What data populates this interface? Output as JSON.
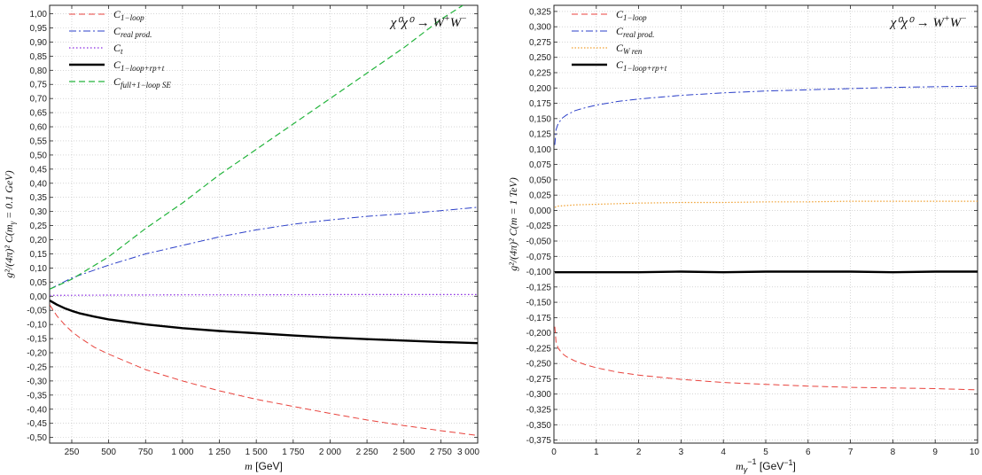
{
  "chart_data": [
    {
      "type": "line",
      "xlabel": {
        "var": "m",
        "unit": "[GeV]"
      },
      "ylabel": {
        "text": "g²/(4π)² C(m",
        "sub": "γ",
        "rest": " = 0.1 GeV)"
      },
      "xlim": [
        100,
        3000
      ],
      "ylim": [
        -0.52,
        1.03
      ],
      "grid": true,
      "legend_placement": "top-left",
      "annotation": {
        "main": "χ⁰χ⁰ → W",
        "sup1": "+",
        "mid": "W",
        "sup2": "−"
      },
      "x_ticks": [
        250,
        500,
        750,
        1000,
        1250,
        1500,
        1750,
        2000,
        2250,
        2500,
        2750,
        3000
      ],
      "x_tick_labels": [
        "250",
        "500",
        "750",
        "1 000",
        "1 250",
        "1 500",
        "1 750",
        "2 000",
        "2 250",
        "2 500",
        "2 750",
        "3 000"
      ],
      "y_ticks": [
        -0.5,
        -0.45,
        -0.4,
        -0.35,
        -0.3,
        -0.25,
        -0.2,
        -0.15,
        -0.1,
        -0.05,
        0.0,
        0.05,
        0.1,
        0.15,
        0.2,
        0.25,
        0.3,
        0.35,
        0.4,
        0.45,
        0.5,
        0.55,
        0.6,
        0.65,
        0.7,
        0.75,
        0.8,
        0.85,
        0.9,
        0.95,
        1.0
      ],
      "y_tick_labels": [
        "-0,50",
        "-0,45",
        "-0,40",
        "-0,35",
        "-0,30",
        "-0,25",
        "-0,20",
        "-0,15",
        "-0,10",
        "-0,05",
        "0,00",
        "0,05",
        "0,10",
        "0,15",
        "0,20",
        "0,25",
        "0,30",
        "0,35",
        "0,40",
        "0,45",
        "0,50",
        "0,55",
        "0,60",
        "0,65",
        "0,70",
        "0,75",
        "0,80",
        "0,85",
        "0,90",
        "0,95",
        "1,00"
      ],
      "series": [
        {
          "name": "C",
          "sub": "1−loop",
          "color": "#e8423c",
          "dash": "7,4",
          "width": 1,
          "x": [
            100,
            150,
            200,
            250,
            300,
            400,
            500,
            750,
            1000,
            1250,
            1500,
            1750,
            2000,
            2250,
            2500,
            2750,
            3000
          ],
          "y": [
            -0.03,
            -0.07,
            -0.1,
            -0.125,
            -0.145,
            -0.18,
            -0.205,
            -0.26,
            -0.3,
            -0.335,
            -0.365,
            -0.39,
            -0.415,
            -0.438,
            -0.458,
            -0.476,
            -0.493
          ]
        },
        {
          "name": "C",
          "sub": "real prod.",
          "color": "#2b3fc8",
          "dash": "8,3,2,3",
          "width": 1,
          "x": [
            100,
            250,
            500,
            750,
            1000,
            1250,
            1500,
            1750,
            2000,
            2250,
            2500,
            2750,
            3000
          ],
          "y": [
            0.025,
            0.065,
            0.11,
            0.15,
            0.18,
            0.21,
            0.235,
            0.255,
            0.27,
            0.283,
            0.292,
            0.303,
            0.315
          ]
        },
        {
          "name": "C",
          "sub": "t",
          "color": "#8a2be2",
          "dash": "1.5,2.5",
          "width": 1.2,
          "x": [
            100,
            500,
            1000,
            1500,
            2000,
            2500,
            3000
          ],
          "y": [
            0.003,
            0.004,
            0.005,
            0.005,
            0.006,
            0.006,
            0.006
          ]
        },
        {
          "name": "C",
          "sub": "1−loop+rp+t",
          "color": "#000000",
          "dash": "",
          "width": 2.4,
          "x": [
            100,
            150,
            200,
            250,
            300,
            400,
            500,
            750,
            1000,
            1250,
            1500,
            1750,
            2000,
            2250,
            2500,
            2750,
            3000
          ],
          "y": [
            -0.015,
            -0.03,
            -0.042,
            -0.052,
            -0.06,
            -0.072,
            -0.082,
            -0.1,
            -0.113,
            -0.123,
            -0.131,
            -0.139,
            -0.146,
            -0.152,
            -0.157,
            -0.162,
            -0.166
          ]
        },
        {
          "name": "C",
          "sub": "full+1−loop SE",
          "color": "#23b43c",
          "dash": "7,4",
          "width": 1.2,
          "x": [
            100,
            250,
            500,
            750,
            1000,
            1250,
            1500,
            1750,
            2000,
            2250,
            2500,
            2750,
            2900
          ],
          "y": [
            0.025,
            0.06,
            0.14,
            0.24,
            0.33,
            0.43,
            0.52,
            0.61,
            0.7,
            0.79,
            0.88,
            0.98,
            1.03
          ]
        }
      ]
    },
    {
      "type": "line",
      "xlabel": {
        "var": "m",
        "sub": "γ",
        "sup": "−1",
        "unit": " [GeV",
        "unit_sup": "−1",
        "unit_end": "]"
      },
      "ylabel": {
        "text": "g²/(4π)² C(m = 1 TeV)"
      },
      "xlim": [
        0,
        10
      ],
      "ylim": [
        -0.38,
        0.335
      ],
      "grid": true,
      "legend_placement": "top-left",
      "annotation": {
        "main": "χ⁰χ⁰ → W",
        "sup1": "+",
        "mid": "W",
        "sup2": "−"
      },
      "x_ticks": [
        0,
        1,
        2,
        3,
        4,
        5,
        6,
        7,
        8,
        9,
        10
      ],
      "x_tick_labels": [
        "0",
        "1",
        "2",
        "3",
        "4",
        "5",
        "6",
        "7",
        "8",
        "9",
        "10"
      ],
      "y_ticks": [
        -0.375,
        -0.35,
        -0.325,
        -0.3,
        -0.275,
        -0.25,
        -0.225,
        -0.2,
        -0.175,
        -0.15,
        -0.125,
        -0.1,
        -0.075,
        -0.05,
        -0.025,
        0.0,
        0.025,
        0.05,
        0.075,
        0.1,
        0.125,
        0.15,
        0.175,
        0.2,
        0.225,
        0.25,
        0.275,
        0.3,
        0.325
      ],
      "y_tick_labels": [
        "-0,375",
        "-0,350",
        "-0,325",
        "-0,300",
        "-0,275",
        "-0,250",
        "-0,225",
        "-0,200",
        "-0,175",
        "-0,150",
        "-0,125",
        "-0,100",
        "-0,075",
        "-0,050",
        "-0,025",
        "0,000",
        "0,025",
        "0,050",
        "0,075",
        "0,100",
        "0,125",
        "0,150",
        "0,175",
        "0,200",
        "0,225",
        "0,250",
        "0,275",
        "0,300",
        "0,325"
      ],
      "series": [
        {
          "name": "C",
          "sub": "1−loop",
          "color": "#e8423c",
          "dash": "7,4",
          "width": 1,
          "x": [
            0.02,
            0.05,
            0.1,
            0.2,
            0.3,
            0.5,
            0.75,
            1,
            1.5,
            2,
            3,
            4,
            5,
            6,
            7,
            8,
            9,
            10
          ],
          "y": [
            -0.19,
            -0.215,
            -0.225,
            -0.234,
            -0.239,
            -0.246,
            -0.252,
            -0.257,
            -0.264,
            -0.269,
            -0.276,
            -0.281,
            -0.284,
            -0.287,
            -0.289,
            -0.29,
            -0.291,
            -0.293
          ]
        },
        {
          "name": "C",
          "sub": "real prod.",
          "color": "#2b3fc8",
          "dash": "8,3,2,3",
          "width": 1,
          "x": [
            0.02,
            0.05,
            0.1,
            0.2,
            0.3,
            0.5,
            0.75,
            1,
            1.5,
            2,
            3,
            4,
            5,
            6,
            7,
            8,
            9,
            10
          ],
          "y": [
            0.107,
            0.132,
            0.142,
            0.151,
            0.156,
            0.163,
            0.168,
            0.172,
            0.178,
            0.182,
            0.188,
            0.192,
            0.195,
            0.197,
            0.199,
            0.201,
            0.202,
            0.203
          ]
        },
        {
          "name": "C",
          "sub": "W ren",
          "color": "#f0a030",
          "dash": "1.5,2",
          "width": 1.2,
          "x": [
            0.02,
            0.1,
            0.3,
            0.5,
            1,
            2,
            3,
            4,
            5,
            6,
            7,
            8,
            9,
            10
          ],
          "y": [
            0.005,
            0.007,
            0.008,
            0.009,
            0.01,
            0.012,
            0.013,
            0.013,
            0.014,
            0.014,
            0.015,
            0.015,
            0.015,
            0.015
          ]
        },
        {
          "name": "C",
          "sub": "1−loop+rp+t",
          "color": "#000000",
          "dash": "",
          "width": 2.4,
          "x": [
            0.02,
            0.5,
            1,
            2,
            3,
            4,
            5,
            6,
            7,
            8,
            9,
            10
          ],
          "y": [
            -0.101,
            -0.101,
            -0.101,
            -0.101,
            -0.1,
            -0.101,
            -0.1,
            -0.1,
            -0.1,
            -0.101,
            -0.1,
            -0.1
          ]
        }
      ]
    }
  ]
}
